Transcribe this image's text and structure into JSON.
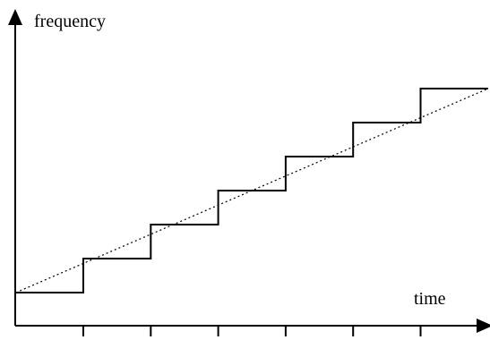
{
  "chart_data": {
    "type": "line",
    "title": "",
    "xlabel": "time",
    "ylabel": "frequency",
    "grid": false,
    "xlim": [
      -1,
      6.95
    ],
    "ylim": [
      0,
      7.2
    ],
    "x_ticks": [
      0,
      1,
      2,
      3,
      4,
      5
    ],
    "series": [
      {
        "style": "solid-step",
        "x": [
          -1,
          0,
          0,
          1,
          1,
          2,
          2,
          3,
          3,
          4,
          4,
          5,
          5,
          6
        ],
        "y": [
          1,
          1,
          2,
          2,
          3,
          3,
          4,
          4,
          5,
          5,
          6,
          6,
          7,
          7
        ]
      },
      {
        "style": "dotted",
        "x": [
          -1,
          6
        ],
        "y": [
          1,
          7
        ]
      }
    ]
  }
}
